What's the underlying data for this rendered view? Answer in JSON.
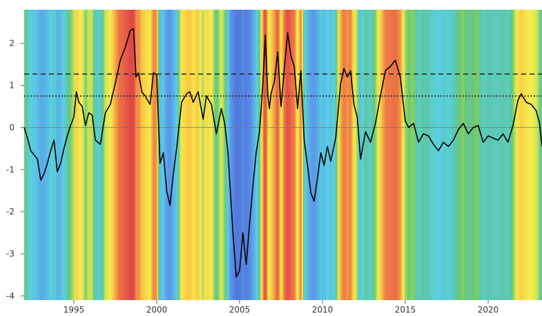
{
  "chart_data": {
    "type": "line",
    "title": "",
    "xlabel": "",
    "ylabel": "",
    "xlim": [
      1992.0,
      2023.25
    ],
    "ylim": [
      -4.1,
      2.8
    ],
    "grid": false,
    "x_ticks": [
      {
        "value": 1995,
        "label": "1995"
      },
      {
        "value": 2000,
        "label": "2000"
      },
      {
        "value": 2005,
        "label": "2005"
      },
      {
        "value": 2010,
        "label": "2010"
      },
      {
        "value": 2015,
        "label": "2015"
      },
      {
        "value": 2020,
        "label": "2020"
      }
    ],
    "y_ticks": [
      {
        "value": 2,
        "label": "2"
      },
      {
        "value": 1,
        "label": "1"
      },
      {
        "value": 0,
        "label": "0"
      },
      {
        "value": -1,
        "label": "-1"
      },
      {
        "value": -2,
        "label": "-2"
      },
      {
        "value": -3,
        "label": "-3"
      },
      {
        "value": -4,
        "label": "-4"
      }
    ],
    "reference_lines": [
      {
        "name": "",
        "y": 1.27,
        "style": "dashed",
        "color": "#222222"
      },
      {
        "name": "",
        "y": 0.75,
        "style": "dotted",
        "color": "#222222"
      },
      {
        "name": "",
        "y": 0.0,
        "style": "solid",
        "color": "#777777"
      }
    ],
    "background_colorscale": {
      "description": "vertical stripes colored by series value",
      "stops": [
        {
          "value": -4.0,
          "color": "#4f73d9"
        },
        {
          "value": -2.0,
          "color": "#5b8fe6"
        },
        {
          "value": -1.0,
          "color": "#5ab4e8"
        },
        {
          "value": -0.5,
          "color": "#5ad0e0"
        },
        {
          "value": -0.2,
          "color": "#5cc8b0"
        },
        {
          "value": 0.0,
          "color": "#6cc870"
        },
        {
          "value": 0.25,
          "color": "#b7e060"
        },
        {
          "value": 0.55,
          "color": "#f5ec50"
        },
        {
          "value": 0.85,
          "color": "#f9c840"
        },
        {
          "value": 1.1,
          "color": "#f4a24a"
        },
        {
          "value": 1.4,
          "color": "#ec7a45"
        },
        {
          "value": 2.3,
          "color": "#e04848"
        }
      ]
    },
    "series": [
      {
        "name": "",
        "color": "#000000",
        "x": [
          1992.0,
          1992.2,
          1992.4,
          1992.6,
          1992.8,
          1993.0,
          1993.2,
          1993.4,
          1993.6,
          1993.8,
          1994.0,
          1994.2,
          1994.4,
          1994.6,
          1994.8,
          1995.0,
          1995.15,
          1995.3,
          1995.5,
          1995.7,
          1995.9,
          1996.1,
          1996.3,
          1996.6,
          1996.9,
          1997.2,
          1997.5,
          1997.8,
          1998.1,
          1998.4,
          1998.6,
          1998.75,
          1998.9,
          1999.1,
          1999.3,
          1999.6,
          1999.8,
          2000.0,
          2000.2,
          2000.4,
          2000.6,
          2000.8,
          2001.0,
          2001.2,
          2001.5,
          2001.8,
          2002.0,
          2002.2,
          2002.5,
          2002.8,
          2003.0,
          2003.3,
          2003.6,
          2003.9,
          2004.1,
          2004.3,
          2004.6,
          2004.8,
          2005.0,
          2005.2,
          2005.4,
          2005.6,
          2005.8,
          2006.0,
          2006.2,
          2006.4,
          2006.55,
          2006.7,
          2006.8,
          2006.9,
          2007.1,
          2007.3,
          2007.5,
          2007.7,
          2007.9,
          2008.1,
          2008.3,
          2008.5,
          2008.7,
          2008.9,
          2009.1,
          2009.3,
          2009.5,
          2009.7,
          2009.9,
          2010.1,
          2010.3,
          2010.5,
          2010.8,
          2011.1,
          2011.3,
          2011.5,
          2011.7,
          2011.9,
          2012.1,
          2012.3,
          2012.6,
          2012.9,
          2013.2,
          2013.5,
          2013.8,
          2014.1,
          2014.4,
          2014.7,
          2015.0,
          2015.2,
          2015.5,
          2015.8,
          2016.1,
          2016.4,
          2016.7,
          2017.0,
          2017.3,
          2017.6,
          2017.9,
          2018.2,
          2018.5,
          2018.8,
          2019.1,
          2019.4,
          2019.7,
          2020.0,
          2020.3,
          2020.6,
          2020.9,
          2021.2,
          2021.5,
          2021.8,
          2022.0,
          2022.3,
          2022.6,
          2022.9,
          2023.1,
          2023.25
        ],
        "y": [
          0.0,
          -0.25,
          -0.55,
          -0.65,
          -0.75,
          -1.25,
          -1.1,
          -0.85,
          -0.55,
          -0.3,
          -1.05,
          -0.85,
          -0.5,
          -0.2,
          0.05,
          0.25,
          0.85,
          0.6,
          0.5,
          0.05,
          0.35,
          0.3,
          -0.3,
          -0.4,
          0.35,
          0.55,
          1.05,
          1.6,
          1.9,
          2.3,
          2.35,
          1.2,
          1.3,
          0.85,
          0.75,
          0.55,
          1.3,
          1.25,
          -0.85,
          -0.6,
          -1.5,
          -1.85,
          -1.1,
          -0.5,
          0.6,
          0.8,
          0.85,
          0.6,
          0.85,
          0.2,
          0.75,
          0.55,
          -0.15,
          0.45,
          0.1,
          -0.6,
          -2.5,
          -3.55,
          -3.4,
          -2.5,
          -3.25,
          -2.3,
          -1.4,
          -0.6,
          -0.1,
          1.0,
          2.2,
          0.8,
          0.45,
          0.8,
          1.1,
          1.8,
          0.5,
          1.4,
          2.25,
          1.7,
          1.45,
          0.45,
          1.35,
          -0.3,
          -0.9,
          -1.55,
          -1.75,
          -1.2,
          -0.6,
          -0.9,
          -0.45,
          -0.8,
          -0.25,
          1.05,
          1.4,
          1.2,
          1.35,
          0.55,
          0.25,
          -0.75,
          -0.1,
          -0.35,
          0.1,
          0.75,
          1.35,
          1.45,
          1.6,
          1.2,
          0.15,
          0.0,
          0.1,
          -0.35,
          -0.15,
          -0.2,
          -0.4,
          -0.55,
          -0.35,
          -0.45,
          -0.3,
          -0.05,
          0.1,
          -0.15,
          0.0,
          0.05,
          -0.35,
          -0.2,
          -0.25,
          -0.3,
          -0.15,
          -0.35,
          0.05,
          0.65,
          0.8,
          0.6,
          0.55,
          0.4,
          0.1,
          -0.45
        ]
      }
    ]
  }
}
